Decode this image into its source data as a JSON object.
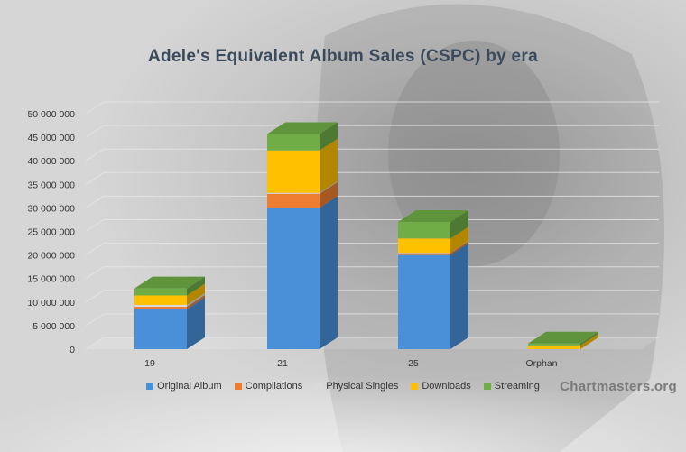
{
  "chart_data": {
    "type": "bar",
    "stacked": true,
    "style": "3d",
    "title": "Adele's Equivalent Album Sales (CSPC) by era",
    "categories": [
      "19",
      "21",
      "25",
      "Orphan"
    ],
    "ylim": [
      0,
      50000000
    ],
    "yticks": [
      {
        "value": 0,
        "label": "0"
      },
      {
        "value": 5000000,
        "label": "5 000 000"
      },
      {
        "value": 10000000,
        "label": "10 000 000"
      },
      {
        "value": 15000000,
        "label": "15 000 000"
      },
      {
        "value": 20000000,
        "label": "20 000 000"
      },
      {
        "value": 25000000,
        "label": "25 000 000"
      },
      {
        "value": 30000000,
        "label": "30 000 000"
      },
      {
        "value": 35000000,
        "label": "35 000 000"
      },
      {
        "value": 40000000,
        "label": "40 000 000"
      },
      {
        "value": 45000000,
        "label": "45 000 000"
      },
      {
        "value": 50000000,
        "label": "50 000 000"
      }
    ],
    "grid": true,
    "legend_position": "bottom",
    "series": [
      {
        "name": "Original Album",
        "color": "#4a90d9",
        "values": [
          8500000,
          30000000,
          20000000,
          0
        ]
      },
      {
        "name": "Compilations",
        "color": "#ed7d31",
        "values": [
          500000,
          3000000,
          400000,
          0
        ]
      },
      {
        "name": "Physical Singles",
        "color": "#d9d9d9",
        "values": [
          400000,
          200000,
          100000,
          0
        ]
      },
      {
        "name": "Downloads",
        "color": "#ffc000",
        "values": [
          2000000,
          9000000,
          3000000,
          800000
        ]
      },
      {
        "name": "Streaming",
        "color": "#70ad47",
        "values": [
          1500000,
          3500000,
          3500000,
          400000
        ]
      }
    ]
  },
  "watermark": "Chartmasters.org"
}
